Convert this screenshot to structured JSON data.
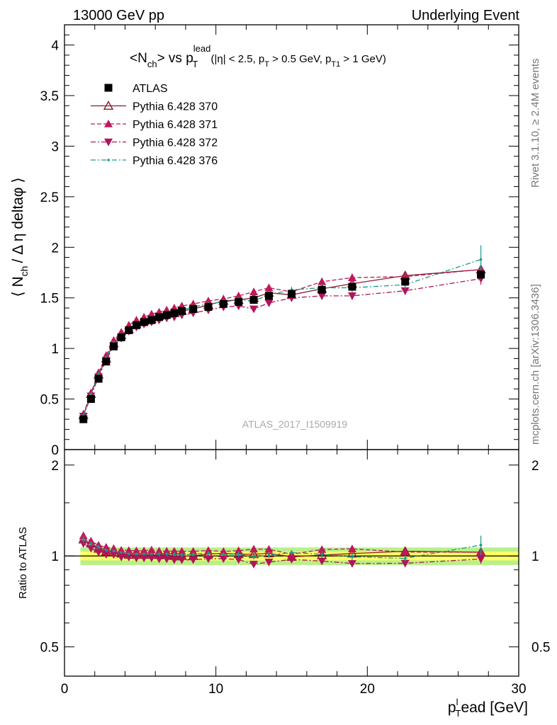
{
  "header": {
    "left": "13000 GeV pp",
    "right": "Underlying Event"
  },
  "side_labels": {
    "rivet": "Rivet 3.1.10, ≥ 2.4M events",
    "mcplots": "mcplots.cern.ch [arXiv:1306.3436]"
  },
  "watermark": "ATLAS_2017_I1509919",
  "colors": {
    "data": "#000000",
    "p370": "#8b1a2b",
    "p371": "#c0185a",
    "p372": "#b0145a",
    "p376": "#1a9a8a",
    "band_inner": "#ffff66",
    "band_outer": "#b8f08a"
  },
  "chart_data": {
    "type": "scatter",
    "title": {
      "pre": "<N",
      "pre_sub": "ch",
      "mid": "> vs p",
      "mid_sup": "lead",
      "mid_sub": "T",
      "cut1": " (|η| < 2.5, p",
      "cut1_sub": "T",
      "cut2": " > 0.5 GeV, p",
      "cut2_sub": "T1",
      "cut3": " > 1 GeV)"
    },
    "ylabel": {
      "a": "⟨ N",
      "a_sub": "ch",
      "b": "/ Δ η deltaφ ⟩"
    },
    "ratio_ylabel": "Ratio to ATLAS",
    "xlabel": {
      "a": "p",
      "a_sub": "T",
      "a_sup": "l",
      "b": "ead [GeV]"
    },
    "xlim": [
      0,
      30
    ],
    "ylim": [
      0,
      4.2
    ],
    "ratio_ylim": [
      0.4,
      2.25
    ],
    "ratio_log_axis": true,
    "x_ticks": [
      0,
      10,
      20,
      30
    ],
    "y_ticks": [
      0,
      0.5,
      1,
      1.5,
      2,
      2.5,
      3,
      3.5,
      4
    ],
    "ratio_ticks": [
      0.5,
      1,
      2
    ],
    "x": [
      1.25,
      1.75,
      2.25,
      2.75,
      3.25,
      3.75,
      4.25,
      4.75,
      5.25,
      5.75,
      6.25,
      6.75,
      7.25,
      7.75,
      8.5,
      9.5,
      10.5,
      11.5,
      12.5,
      13.5,
      15,
      17,
      19,
      22.5,
      27.5
    ],
    "legend": [
      {
        "key": "data",
        "label": "ATLAS",
        "marker": "square",
        "line": "none"
      },
      {
        "key": "p370",
        "label": "Pythia 6.428 370",
        "marker": "triangle-up-open",
        "line": "solid"
      },
      {
        "key": "p371",
        "label": "Pythia 6.428 371",
        "marker": "triangle-up",
        "line": "dashed"
      },
      {
        "key": "p372",
        "label": "Pythia 6.428 372",
        "marker": "triangle-down",
        "line": "dashdot"
      },
      {
        "key": "p376",
        "label": "Pythia 6.428 376",
        "marker": "dot",
        "line": "dashdot"
      }
    ],
    "series": [
      {
        "key": "data",
        "name": "ATLAS",
        "values": [
          0.3,
          0.5,
          0.7,
          0.87,
          1.02,
          1.11,
          1.18,
          1.23,
          1.26,
          1.28,
          1.31,
          1.33,
          1.35,
          1.37,
          1.39,
          1.41,
          1.44,
          1.46,
          1.48,
          1.52,
          1.54,
          1.58,
          1.61,
          1.66,
          1.73
        ],
        "errors": [
          0.01,
          0.01,
          0.01,
          0.02,
          0.02,
          0.02,
          0.02,
          0.02,
          0.02,
          0.02,
          0.02,
          0.02,
          0.02,
          0.02,
          0.02,
          0.02,
          0.02,
          0.02,
          0.02,
          0.02,
          0.02,
          0.02,
          0.03,
          0.03,
          0.04
        ]
      },
      {
        "key": "p370",
        "name": "Pythia 6.428 370",
        "values": [
          0.34,
          0.55,
          0.74,
          0.9,
          1.05,
          1.13,
          1.19,
          1.24,
          1.27,
          1.29,
          1.32,
          1.34,
          1.35,
          1.37,
          1.39,
          1.43,
          1.47,
          1.48,
          1.5,
          1.55,
          1.53,
          1.59,
          1.64,
          1.72,
          1.78
        ],
        "errors": [
          0.01,
          0.01,
          0.01,
          0.01,
          0.01,
          0.01,
          0.01,
          0.01,
          0.01,
          0.01,
          0.01,
          0.02,
          0.02,
          0.02,
          0.02,
          0.02,
          0.02,
          0.03,
          0.03,
          0.03,
          0.03,
          0.04,
          0.04,
          0.04,
          0.06
        ]
      },
      {
        "key": "p371",
        "name": "Pythia 6.428 371",
        "values": [
          0.35,
          0.56,
          0.76,
          0.93,
          1.08,
          1.16,
          1.23,
          1.28,
          1.31,
          1.34,
          1.36,
          1.38,
          1.4,
          1.42,
          1.44,
          1.47,
          1.49,
          1.52,
          1.56,
          1.6,
          1.56,
          1.66,
          1.7,
          1.71,
          1.78
        ],
        "errors": [
          0.01,
          0.01,
          0.01,
          0.01,
          0.01,
          0.01,
          0.01,
          0.01,
          0.01,
          0.01,
          0.02,
          0.02,
          0.02,
          0.02,
          0.02,
          0.02,
          0.02,
          0.03,
          0.03,
          0.03,
          0.03,
          0.04,
          0.04,
          0.04,
          0.06
        ]
      },
      {
        "key": "p372",
        "name": "Pythia 6.428 372",
        "values": [
          0.33,
          0.53,
          0.72,
          0.88,
          1.03,
          1.1,
          1.17,
          1.21,
          1.24,
          1.26,
          1.28,
          1.3,
          1.31,
          1.33,
          1.35,
          1.38,
          1.41,
          1.42,
          1.39,
          1.45,
          1.5,
          1.52,
          1.52,
          1.57,
          1.69
        ],
        "errors": [
          0.01,
          0.01,
          0.01,
          0.01,
          0.01,
          0.01,
          0.01,
          0.01,
          0.01,
          0.01,
          0.02,
          0.02,
          0.02,
          0.02,
          0.02,
          0.02,
          0.02,
          0.03,
          0.03,
          0.03,
          0.03,
          0.04,
          0.04,
          0.04,
          0.06
        ]
      },
      {
        "key": "p376",
        "name": "Pythia 6.428 376",
        "values": [
          0.34,
          0.55,
          0.75,
          0.91,
          1.06,
          1.14,
          1.2,
          1.25,
          1.28,
          1.3,
          1.33,
          1.35,
          1.37,
          1.38,
          1.41,
          1.44,
          1.46,
          1.48,
          1.47,
          1.53,
          1.58,
          1.6,
          1.6,
          1.63,
          1.88
        ],
        "errors": [
          0.01,
          0.01,
          0.01,
          0.01,
          0.01,
          0.01,
          0.01,
          0.01,
          0.01,
          0.01,
          0.02,
          0.02,
          0.02,
          0.02,
          0.02,
          0.02,
          0.02,
          0.03,
          0.03,
          0.03,
          0.03,
          0.04,
          0.04,
          0.04,
          0.14
        ]
      }
    ]
  }
}
